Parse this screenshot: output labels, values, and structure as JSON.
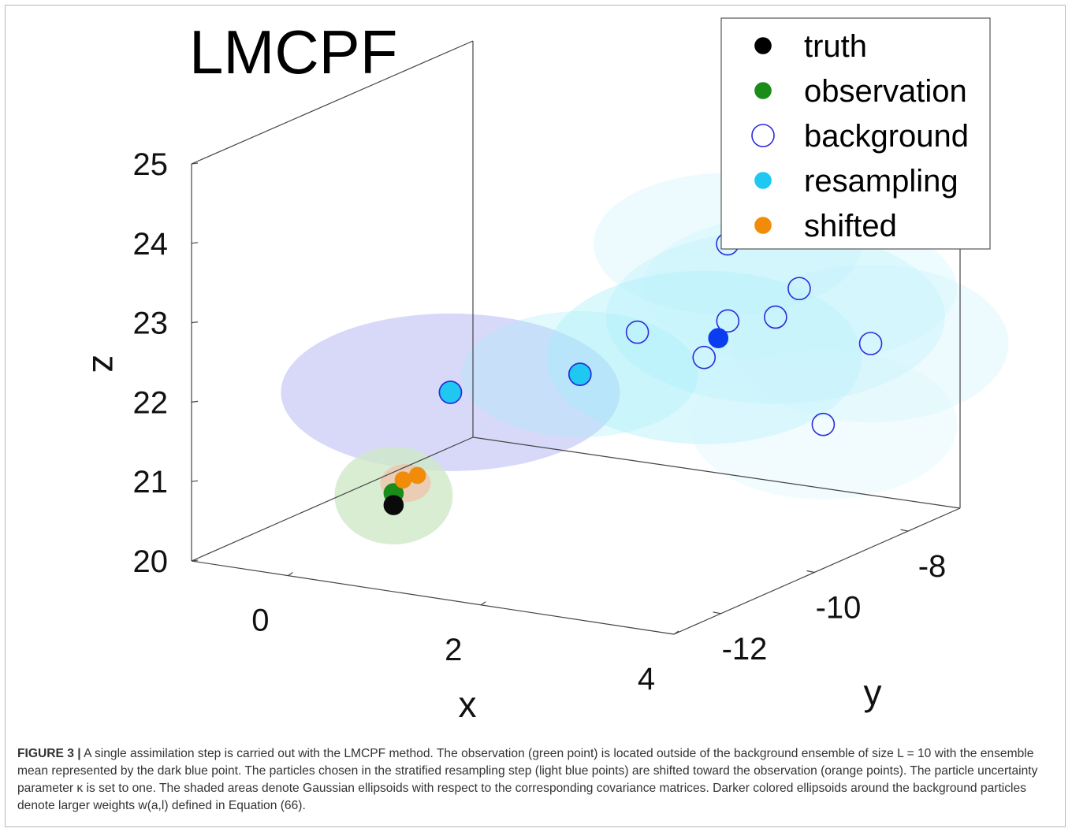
{
  "chart_data": {
    "type": "scatter",
    "title": "LMCPF",
    "xlabel": "x",
    "ylabel": "y",
    "zlabel": "z",
    "xlim": [
      -1,
      4
    ],
    "ylim": [
      -13,
      -7
    ],
    "zlim": [
      20,
      25
    ],
    "x_ticks": [
      "0",
      "2",
      "4"
    ],
    "y_ticks": [
      "-12",
      "-10",
      "-8"
    ],
    "z_ticks": [
      "20",
      "21",
      "22",
      "23",
      "24",
      "25"
    ],
    "legend_position": "top-right",
    "legend": [
      {
        "label": "truth",
        "marker": "filled",
        "color": "#000000"
      },
      {
        "label": "observation",
        "marker": "filled",
        "color": "#1a8c1a"
      },
      {
        "label": "background",
        "marker": "open",
        "color": "#2b2bd9"
      },
      {
        "label": "resampling",
        "marker": "filled",
        "color": "#1ec8f0"
      },
      {
        "label": "shifted",
        "marker": "filled",
        "color": "#f08c0a"
      }
    ],
    "series": [
      {
        "name": "truth",
        "points": [
          {
            "x": 0.9,
            "y": -12.6,
            "z": 20.95
          }
        ]
      },
      {
        "name": "observation",
        "points": [
          {
            "x": 0.9,
            "y": -12.6,
            "z": 21.1
          }
        ]
      },
      {
        "name": "shifted",
        "points": [
          {
            "x": 0.95,
            "y": -12.5,
            "z": 21.25
          },
          {
            "x": 1.05,
            "y": -12.4,
            "z": 21.3
          }
        ]
      },
      {
        "name": "resampling",
        "points": [
          {
            "x": 1.1,
            "y": -11.8,
            "z": 22.2
          },
          {
            "x": 2.2,
            "y": -11.3,
            "z": 22.5
          }
        ]
      },
      {
        "name": "background",
        "points": [
          {
            "x": 1.1,
            "y": -11.8,
            "z": 22.2
          },
          {
            "x": 2.2,
            "y": -11.3,
            "z": 22.5
          },
          {
            "x": 2.6,
            "y": -10.9,
            "z": 23.0
          },
          {
            "x": 3.0,
            "y": -10.3,
            "z": 22.6
          },
          {
            "x": 3.1,
            "y": -10.0,
            "z": 23.0
          },
          {
            "x": 3.0,
            "y": -9.8,
            "z": 23.9
          },
          {
            "x": 3.4,
            "y": -9.6,
            "z": 23.0
          },
          {
            "x": 3.5,
            "y": -9.3,
            "z": 23.3
          },
          {
            "x": 3.7,
            "y": -9.2,
            "z": 21.6
          },
          {
            "x": 3.9,
            "y": -8.6,
            "z": 22.5
          }
        ]
      },
      {
        "name": "ensemble mean",
        "points": [
          {
            "x": 3.05,
            "y": -10.1,
            "z": 22.8
          }
        ]
      }
    ]
  },
  "caption": {
    "label": "FIGURE 3 |",
    "text": " A single assimilation step is carried out with the LMCPF method. The observation (green point) is located outside of the background ensemble of size L = 10  with the ensemble mean represented by the dark blue point. The particles chosen in the stratified resampling step (light blue points) are shifted toward the observation (orange points). The particle uncertainty parameter κ is set to one. The shaded areas denote Gaussian ellipsoids with respect to the corresponding covariance matrices. Darker colored ellipsoids around the background particles denote larger weights w(a,l) defined in Equation (66)."
  }
}
